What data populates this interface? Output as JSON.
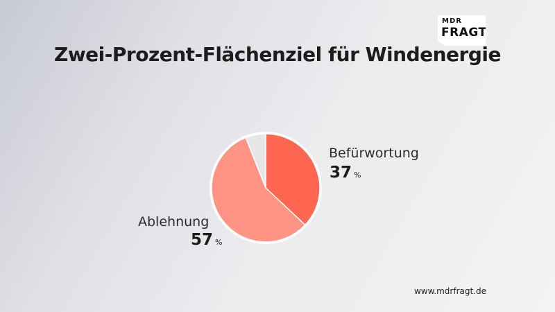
{
  "logo": {
    "top": "MDR",
    "bottom": "FRAGT"
  },
  "footer": {
    "url": "www.mdrfragt.de"
  },
  "chart_data": {
    "type": "pie",
    "title": "Zwei-Prozent-Flächenziel für Windenergie",
    "unit": "%",
    "slices": [
      {
        "label": "Befürwortung",
        "value": 37,
        "color": "#ff6652"
      },
      {
        "label": "Ablehnung",
        "value": 57,
        "color": "#ff9384"
      },
      {
        "label": "",
        "value": 6,
        "color": "#e6e6e8"
      }
    ]
  }
}
